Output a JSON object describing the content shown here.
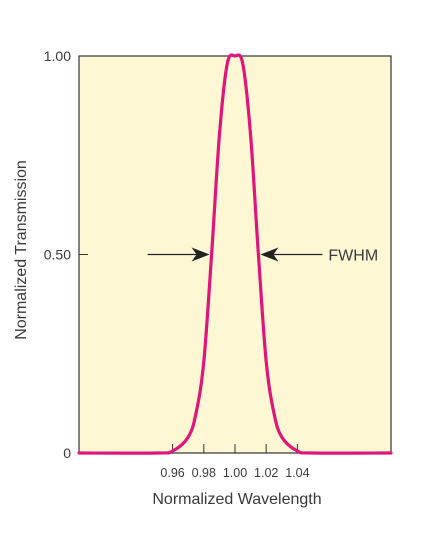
{
  "chart_data": {
    "type": "line",
    "xlabel": "Normalized Wavelength",
    "ylabel": "Normalized Transmission",
    "xlim": [
      0.9,
      1.1
    ],
    "ylim": [
      0,
      1.0
    ],
    "x_ticks": [
      0.96,
      0.98,
      1.0,
      1.02,
      1.04
    ],
    "x_tick_labels": [
      "0.96",
      "0.98",
      "1.00",
      "1.02",
      "1.04"
    ],
    "y_ticks": [
      0,
      0.5,
      1.0
    ],
    "y_tick_labels": [
      "0",
      "0.50",
      "1.00"
    ],
    "series": [
      {
        "x": [
          0.9,
          0.95,
          0.96,
          0.97,
          0.975,
          0.98,
          0.985,
          0.99,
          0.995,
          1.0,
          1.005,
          1.01,
          1.015,
          1.02,
          1.025,
          1.03,
          1.04,
          1.05,
          1.1
        ],
        "y": [
          0,
          0,
          0.005,
          0.04,
          0.1,
          0.23,
          0.5,
          0.8,
          0.98,
          1.0,
          0.98,
          0.8,
          0.5,
          0.23,
          0.1,
          0.04,
          0.005,
          0,
          0
        ],
        "color": "#e0157a"
      }
    ],
    "annotations": [
      {
        "text": "FWHM",
        "y": 0.5,
        "x_left": 0.985,
        "x_right": 1.015
      }
    ],
    "background": "#fdf7d4",
    "grid": false
  }
}
